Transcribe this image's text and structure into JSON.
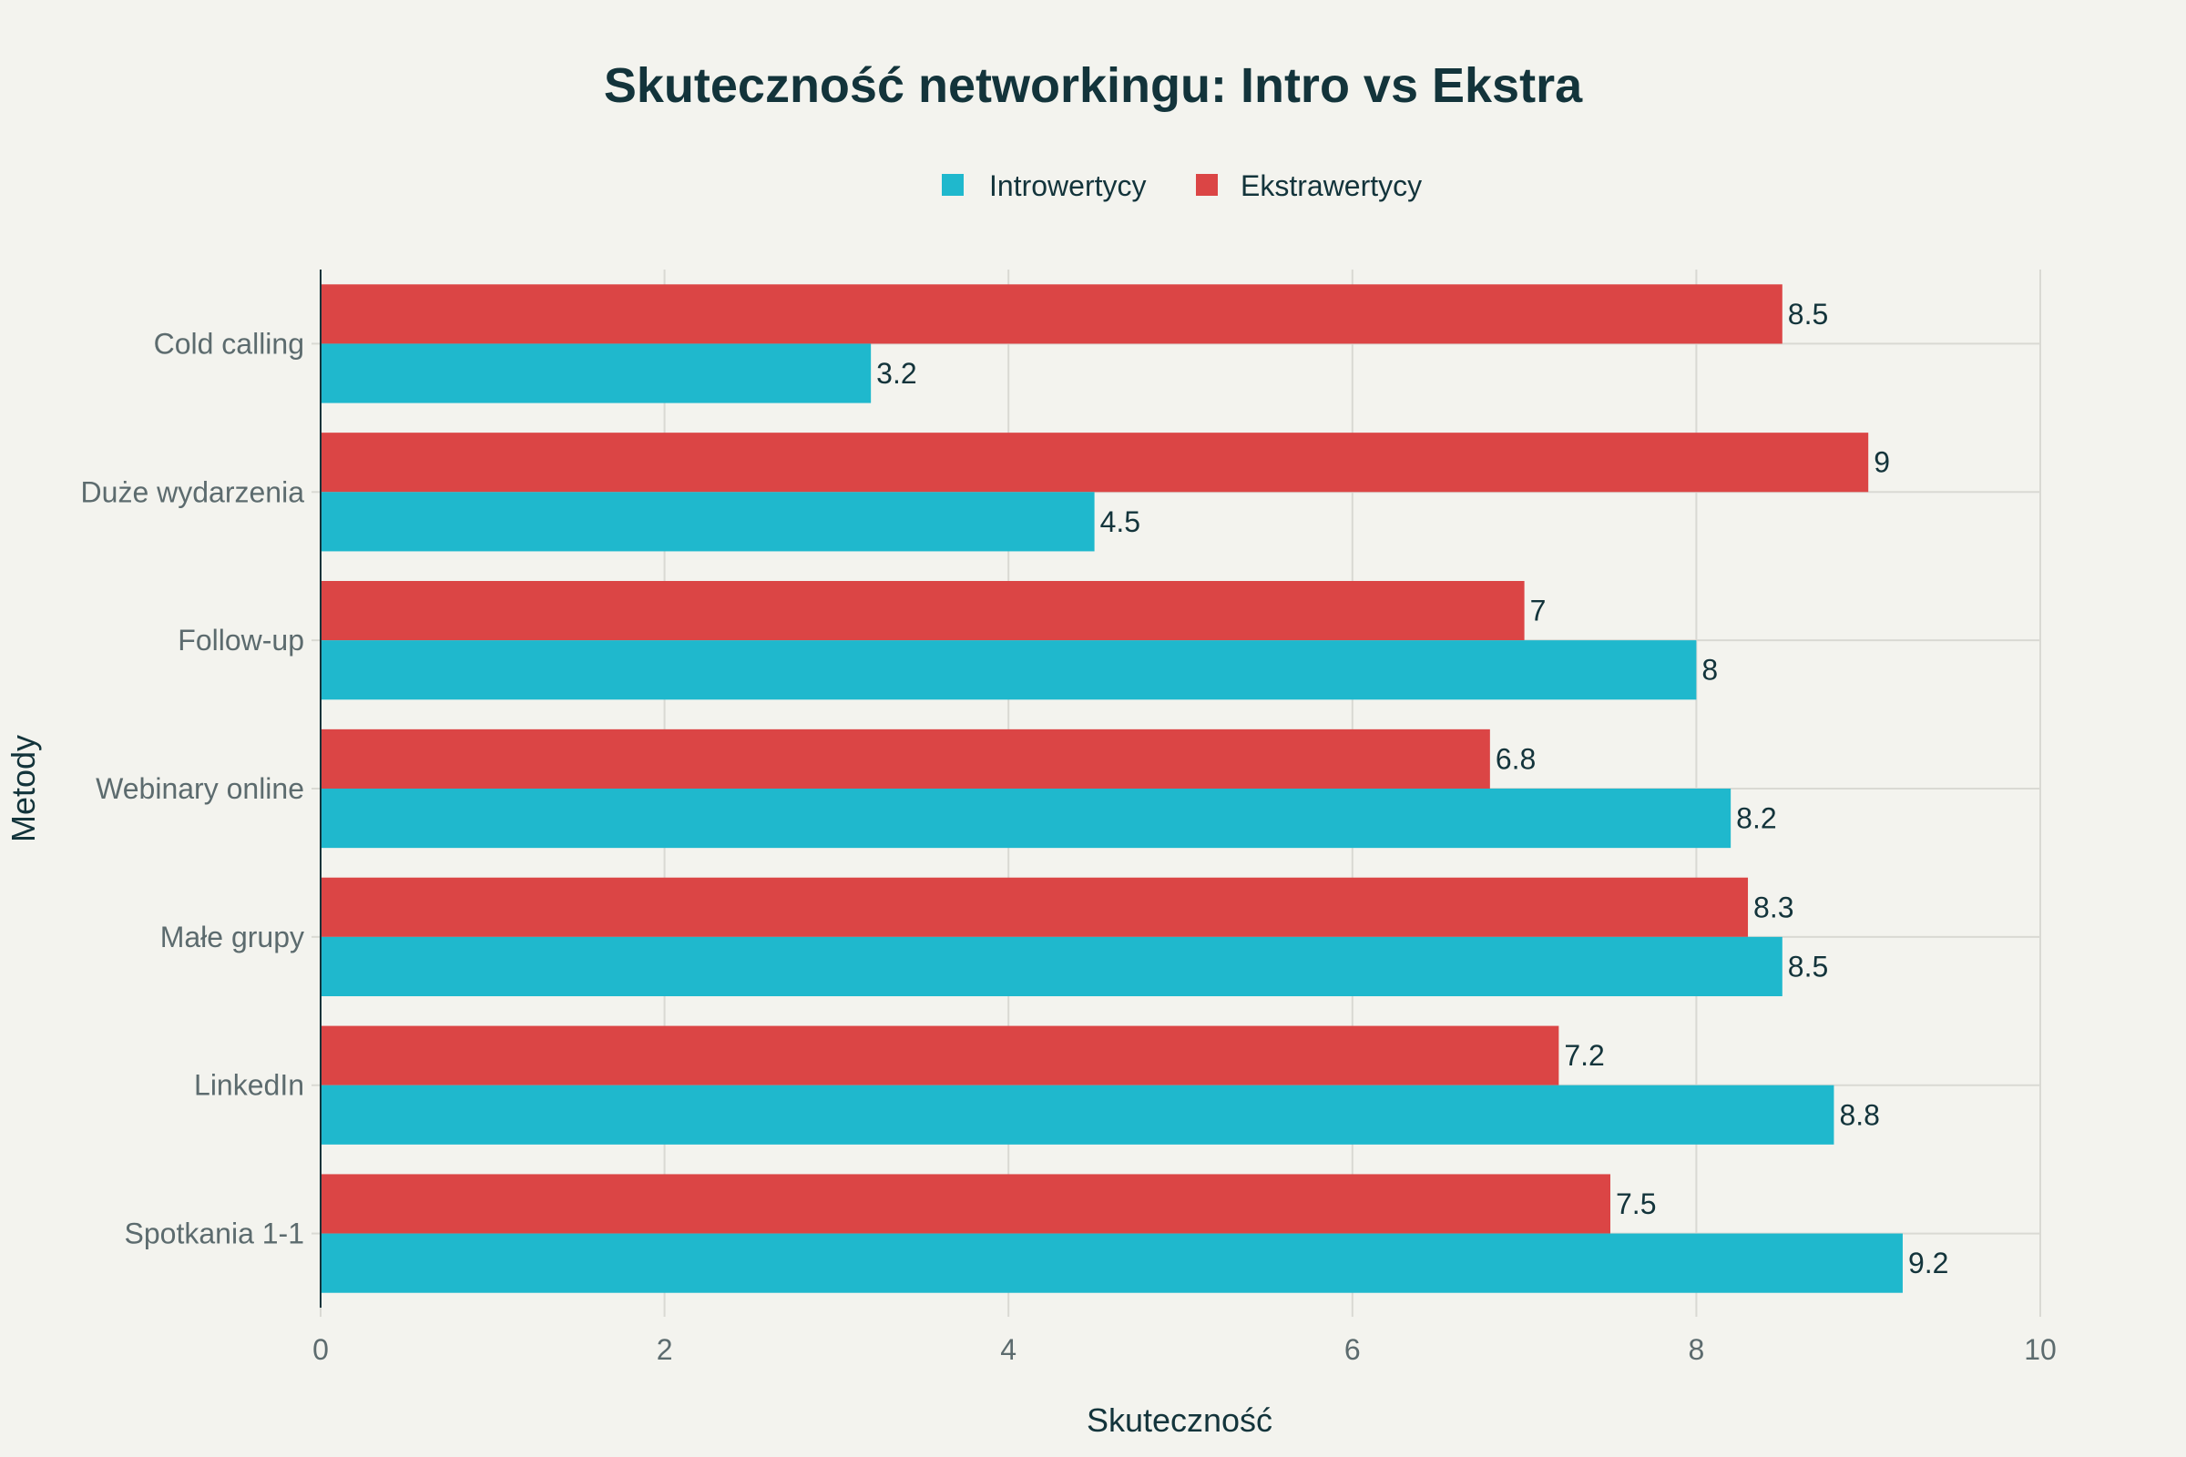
{
  "chart_data": {
    "type": "bar",
    "orientation": "horizontal",
    "title": "Skuteczność networkingu: Intro vs Ekstra",
    "xlabel": "Skuteczność",
    "ylabel": "Metody",
    "xlim": [
      0,
      10
    ],
    "xticks": [
      0,
      2,
      4,
      6,
      8,
      10
    ],
    "grid": true,
    "legend_position": "top-center",
    "categories": [
      "Cold calling",
      "Duże wydarzenia",
      "Follow-up",
      "Webinary online",
      "Małe grupy",
      "LinkedIn",
      "Spotkania 1-1"
    ],
    "series": [
      {
        "name": "Introwertycy",
        "color": "#1fb8cd",
        "values": [
          3.2,
          4.5,
          8,
          8.2,
          8.5,
          8.8,
          9.2
        ]
      },
      {
        "name": "Ekstrawertycy",
        "color": "#db4545",
        "values": [
          8.5,
          9,
          7,
          6.8,
          8.3,
          7.2,
          7.5
        ]
      }
    ]
  },
  "colors": {
    "background": "#f3f3ee",
    "title": "#13343b",
    "axis_text": "#5c6b6e",
    "grid": "#d9d9d3"
  }
}
